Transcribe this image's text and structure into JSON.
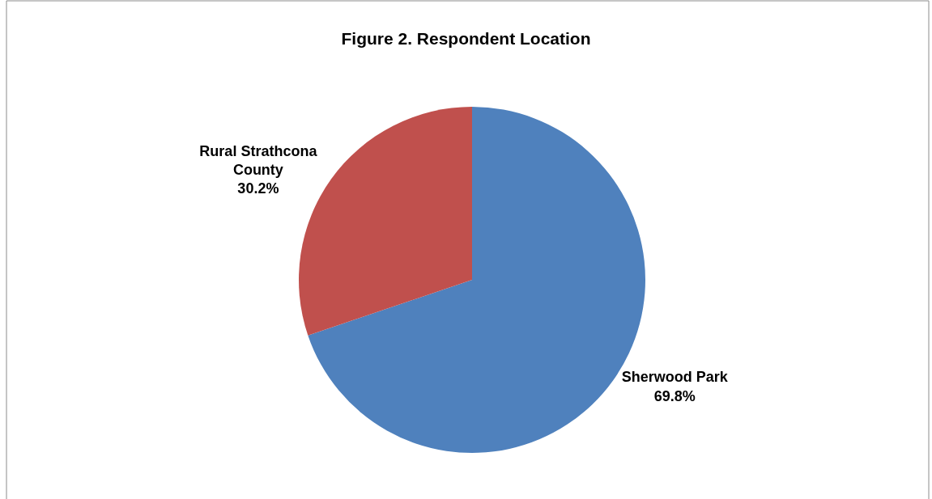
{
  "chart_data": {
    "type": "pie",
    "title": "Figure 2. Respondent Location",
    "categories": [
      "Sherwood Park",
      "Rural Strathcona County"
    ],
    "values": [
      69.8,
      30.2
    ],
    "colors": [
      "#4f81bd",
      "#c0504d"
    ],
    "value_labels": [
      "69.8%",
      "30.2%"
    ]
  }
}
